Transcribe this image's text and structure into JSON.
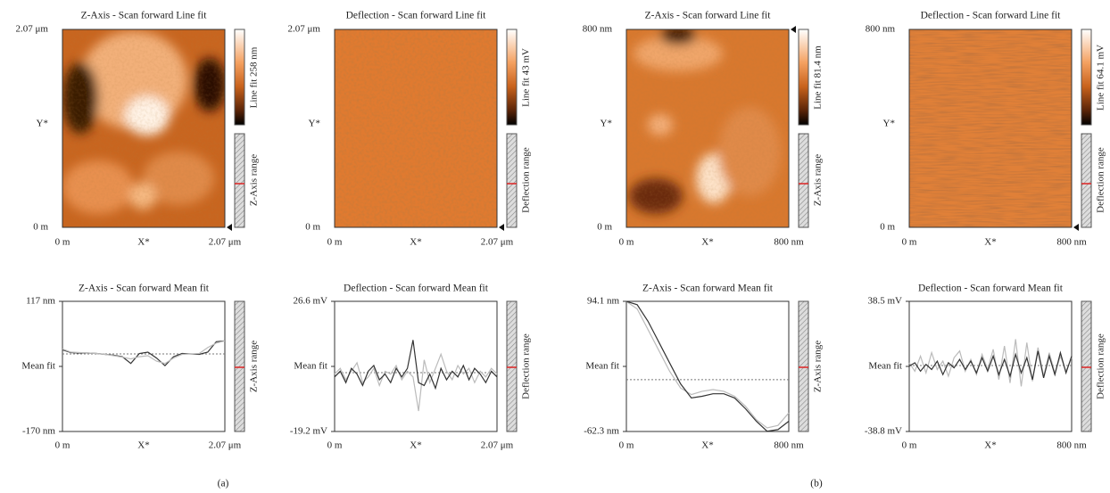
{
  "panels": [
    {
      "title": "Z-Axis - Scan forward Line fit",
      "y_top": "2.07 μm",
      "y_mid": "Y*",
      "y_bottom": "0 m",
      "x_left": "0 m",
      "x_mid": "X*",
      "x_right": "2.07 μm",
      "colorbar": "Line fit 258 nm",
      "range": "Z-Axis range"
    },
    {
      "title": "Deflection - Scan forward Line fit",
      "y_top": "2.07 μm",
      "y_mid": "Y*",
      "y_bottom": "0 m",
      "x_left": "0 m",
      "x_mid": "X*",
      "x_right": "2.07 μm",
      "colorbar": "Line fit 43 mV",
      "range": "Deflection range"
    },
    {
      "title": "Z-Axis - Scan forward Line fit",
      "y_top": "800 nm",
      "y_mid": "Y*",
      "y_bottom": "0 m",
      "x_left": "0 m",
      "x_mid": "X*",
      "x_right": "800 nm",
      "colorbar": "Line fit 81.4 nm",
      "range": "Z-Axis range"
    },
    {
      "title": "Deflection - Scan forward Line fit",
      "y_top": "800 nm",
      "y_mid": "Y*",
      "y_bottom": "0 m",
      "x_left": "0 m",
      "x_mid": "X*",
      "x_right": "800 nm",
      "colorbar": "Line fit 64.1 mV",
      "range": "Deflection range"
    }
  ],
  "profiles": [
    {
      "title": "Z-Axis - Scan forward Mean fit",
      "ylim": [
        -170,
        117
      ],
      "yticks": [
        {
          "value": 117,
          "label": "117 nm"
        },
        {
          "value": -26.5,
          "label": "Mean fit"
        },
        {
          "value": -170,
          "label": "-170 nm"
        }
      ],
      "x_left": "0 m",
      "x_mid": "X*",
      "x_right": "2.07 μm",
      "range": "Z-Axis range",
      "mean": 1,
      "series": [
        {
          "color": "#333333",
          "values": [
            10,
            4,
            3,
            3,
            2,
            0,
            -2,
            -5,
            -20,
            2,
            5,
            -8,
            -25,
            -5,
            2,
            1,
            0,
            5,
            28,
            30
          ]
        },
        {
          "color": "#bbbbbb",
          "values": [
            12,
            5,
            4,
            3,
            2,
            0,
            -3,
            -6,
            -10,
            -5,
            -3,
            -15,
            -20,
            -8,
            0,
            1,
            2,
            15,
            25,
            30
          ]
        }
      ]
    },
    {
      "title": "Deflection - Scan forward Mean fit",
      "ylim": [
        -19.2,
        26.6
      ],
      "yticks": [
        {
          "value": 26.6,
          "label": "26.6 mV"
        },
        {
          "value": 3.7,
          "label": "Mean fit"
        },
        {
          "value": -19.2,
          "label": "-19.2 mV"
        }
      ],
      "x_left": "0 m",
      "x_mid": "X*",
      "x_right": "2.07 μm",
      "range": "Deflection range",
      "mean": 1.5,
      "series": [
        {
          "color": "#bbbbbb",
          "values": [
            1,
            3,
            -1,
            2,
            5,
            -2,
            0,
            3,
            -3,
            2,
            1,
            4,
            -1,
            2,
            0,
            -12,
            6,
            -2,
            3,
            8,
            2,
            -1,
            4,
            1,
            3,
            -2,
            2,
            0,
            3,
            1
          ]
        },
        {
          "color": "#333333",
          "values": [
            0,
            2,
            -2,
            3,
            1,
            -3,
            2,
            4,
            -1,
            1,
            -2,
            3,
            0,
            3,
            13,
            -2,
            -3,
            1,
            -4,
            3,
            -1,
            2,
            0,
            4,
            -1,
            3,
            1,
            -2,
            2,
            0
          ]
        }
      ]
    },
    {
      "title": "Z-Axis - Scan forward Mean fit",
      "ylim": [
        -62.3,
        94.1
      ],
      "yticks": [
        {
          "value": 94.1,
          "label": "94.1 nm"
        },
        {
          "value": 15.9,
          "label": "Mean fit"
        },
        {
          "value": -62.3,
          "label": "-62.3 nm"
        }
      ],
      "x_left": "0 m",
      "x_mid": "X*",
      "x_right": "800 nm",
      "range": "Z-Axis range",
      "mean": 0,
      "series": [
        {
          "color": "#bbbbbb",
          "values": [
            94,
            85,
            60,
            35,
            10,
            -10,
            -18,
            -14,
            -12,
            -14,
            -20,
            -32,
            -48,
            -58,
            -55,
            -40
          ]
        },
        {
          "color": "#333333",
          "values": [
            94,
            90,
            70,
            45,
            20,
            -5,
            -22,
            -20,
            -17,
            -17,
            -22,
            -35,
            -50,
            -62,
            -60,
            -50
          ]
        }
      ]
    },
    {
      "title": "Deflection - Scan forward Mean fit",
      "ylim": [
        -38.8,
        38.5
      ],
      "yticks": [
        {
          "value": 38.5,
          "label": "38.5 mV"
        },
        {
          "value": -0.15,
          "label": "Mean fit"
        },
        {
          "value": -38.8,
          "label": "-38.8 mV"
        }
      ],
      "x_left": "0 m",
      "x_mid": "X*",
      "x_right": "800 nm",
      "range": "Deflection range",
      "mean": 0.4,
      "series": [
        {
          "color": "#bbbbbb",
          "values": [
            2,
            -3,
            6,
            -4,
            8,
            -2,
            3,
            -6,
            5,
            9,
            -3,
            4,
            -5,
            7,
            -2,
            10,
            -8,
            12,
            -10,
            16,
            -12,
            14,
            -9,
            11,
            -6,
            8,
            -4,
            6,
            -3,
            5
          ]
        },
        {
          "color": "#333333",
          "values": [
            0,
            2,
            -3,
            1,
            -2,
            3,
            -5,
            2,
            -1,
            4,
            -2,
            3,
            -4,
            5,
            -3,
            6,
            -5,
            4,
            -6,
            7,
            -4,
            5,
            -8,
            9,
            -7,
            6,
            -5,
            8,
            -4,
            6
          ]
        }
      ]
    }
  ],
  "captions": [
    "(a)",
    "(b)"
  ]
}
